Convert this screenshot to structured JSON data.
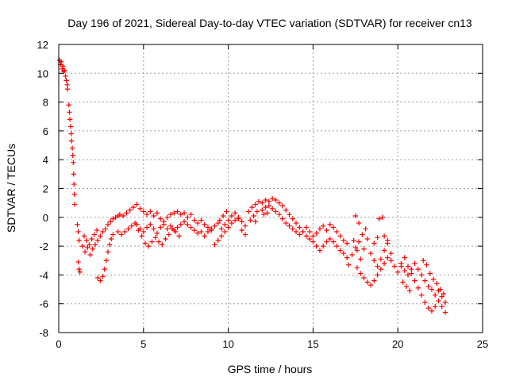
{
  "chart_data": {
    "type": "scatter",
    "title": "Day 196 of 2021, Sidereal Day-to-day VTEC variation (SDTVAR) for receiver cn13",
    "xlabel": "GPS time / hours",
    "ylabel": "SDTVAR / TECUs",
    "xlim": [
      0,
      25
    ],
    "ylim": [
      -8,
      12
    ],
    "xticks": [
      0,
      5,
      10,
      15,
      20,
      25
    ],
    "yticks": [
      -8,
      -6,
      -4,
      -2,
      0,
      2,
      4,
      6,
      8,
      10,
      12
    ],
    "grid": true,
    "marker": "plus",
    "color": "#ff0000",
    "series": [
      {
        "name": "SDTVAR",
        "points": [
          [
            0.05,
            10.9
          ],
          [
            0.1,
            10.6
          ],
          [
            0.15,
            10.8
          ],
          [
            0.2,
            10.3
          ],
          [
            0.25,
            10.5
          ],
          [
            0.3,
            10.1
          ],
          [
            0.35,
            10.2
          ],
          [
            0.4,
            9.8
          ],
          [
            0.45,
            9.5
          ],
          [
            0.5,
            9.2
          ],
          [
            0.52,
            8.9
          ],
          [
            0.6,
            7.8
          ],
          [
            0.63,
            7.3
          ],
          [
            0.66,
            6.8
          ],
          [
            0.7,
            6.3
          ],
          [
            0.73,
            5.8
          ],
          [
            0.76,
            5.3
          ],
          [
            0.8,
            4.8
          ],
          [
            0.83,
            4.3
          ],
          [
            0.86,
            3.8
          ],
          [
            0.88,
            3.0
          ],
          [
            0.9,
            2.3
          ],
          [
            0.92,
            1.6
          ],
          [
            0.94,
            0.9
          ],
          [
            1.1,
            -0.5
          ],
          [
            1.15,
            -1.0
          ],
          [
            1.2,
            -1.6
          ],
          [
            1.15,
            -3.1
          ],
          [
            1.2,
            -3.6
          ],
          [
            1.25,
            -3.8
          ],
          [
            1.4,
            -2.0
          ],
          [
            1.55,
            -2.4
          ],
          [
            1.7,
            -2.1
          ],
          [
            1.85,
            -2.6
          ],
          [
            2.0,
            -2.2
          ],
          [
            2.15,
            -1.9
          ],
          [
            2.3,
            -1.6
          ],
          [
            2.45,
            -1.3
          ],
          [
            2.6,
            -1.0
          ],
          [
            2.75,
            -0.8
          ],
          [
            2.9,
            -0.5
          ],
          [
            3.05,
            -0.3
          ],
          [
            3.2,
            -0.1
          ],
          [
            3.35,
            0.0
          ],
          [
            3.5,
            0.1
          ],
          [
            1.5,
            -1.3
          ],
          [
            1.65,
            -1.6
          ],
          [
            1.8,
            -1.9
          ],
          [
            1.95,
            -1.5
          ],
          [
            2.1,
            -1.2
          ],
          [
            2.25,
            -0.9
          ],
          [
            2.3,
            -4.2
          ],
          [
            2.45,
            -4.4
          ],
          [
            2.6,
            -4.1
          ],
          [
            2.7,
            -3.6
          ],
          [
            2.8,
            -3.0
          ],
          [
            2.9,
            -2.4
          ],
          [
            3.0,
            -1.9
          ],
          [
            3.1,
            -1.5
          ],
          [
            3.2,
            -1.2
          ],
          [
            3.6,
            0.2
          ],
          [
            3.8,
            0.1
          ],
          [
            4.0,
            0.3
          ],
          [
            4.2,
            0.5
          ],
          [
            4.4,
            0.7
          ],
          [
            4.6,
            0.9
          ],
          [
            4.8,
            0.6
          ],
          [
            5.0,
            0.4
          ],
          [
            5.2,
            0.2
          ],
          [
            5.4,
            0.4
          ],
          [
            5.6,
            0.1
          ],
          [
            5.8,
            0.3
          ],
          [
            6.0,
            -0.1
          ],
          [
            6.2,
            -0.3
          ],
          [
            6.4,
            0.0
          ],
          [
            6.6,
            0.2
          ],
          [
            6.8,
            0.3
          ],
          [
            7.0,
            0.4
          ],
          [
            7.2,
            0.2
          ],
          [
            7.4,
            0.3
          ],
          [
            7.6,
            0.0
          ],
          [
            7.8,
            0.2
          ],
          [
            8.0,
            -0.2
          ],
          [
            8.2,
            -0.4
          ],
          [
            8.4,
            -0.2
          ],
          [
            8.6,
            -0.5
          ],
          [
            8.8,
            -0.7
          ],
          [
            9.0,
            -0.9
          ],
          [
            3.5,
            -1.0
          ],
          [
            3.7,
            -1.2
          ],
          [
            3.9,
            -1.0
          ],
          [
            4.1,
            -0.8
          ],
          [
            4.3,
            -0.6
          ],
          [
            4.5,
            -0.4
          ],
          [
            4.7,
            -0.9
          ],
          [
            4.9,
            -1.3
          ],
          [
            5.1,
            -1.8
          ],
          [
            5.3,
            -2.0
          ],
          [
            5.5,
            -1.7
          ],
          [
            5.7,
            -1.4
          ],
          [
            5.9,
            -1.7
          ],
          [
            6.1,
            -1.9
          ],
          [
            6.3,
            -1.5
          ],
          [
            6.5,
            -1.2
          ],
          [
            6.7,
            -0.8
          ],
          [
            6.9,
            -1.0
          ],
          [
            7.1,
            -1.3
          ],
          [
            4.6,
            -0.5
          ],
          [
            4.8,
            -0.8
          ],
          [
            5.0,
            -1.0
          ],
          [
            5.2,
            -0.7
          ],
          [
            5.4,
            -0.5
          ],
          [
            5.6,
            -0.8
          ],
          [
            5.8,
            -1.1
          ],
          [
            6.0,
            -0.7
          ],
          [
            6.2,
            -0.5
          ],
          [
            6.4,
            -0.8
          ],
          [
            6.6,
            -0.6
          ],
          [
            6.8,
            -0.9
          ],
          [
            7.0,
            -0.7
          ],
          [
            7.2,
            -0.5
          ],
          [
            7.4,
            -0.3
          ],
          [
            7.6,
            -0.5
          ],
          [
            7.8,
            -0.7
          ],
          [
            8.0,
            -0.9
          ],
          [
            8.2,
            -1.1
          ],
          [
            8.4,
            -1.0
          ],
          [
            8.6,
            -1.3
          ],
          [
            8.8,
            -1.0
          ],
          [
            9.0,
            -0.8
          ],
          [
            9.2,
            -0.6
          ],
          [
            9.4,
            -0.4
          ],
          [
            9.2,
            -1.9
          ],
          [
            9.4,
            -1.6
          ],
          [
            9.6,
            -1.3
          ],
          [
            9.8,
            -1.0
          ],
          [
            10.0,
            -0.7
          ],
          [
            10.2,
            -0.4
          ],
          [
            10.4,
            -0.2
          ],
          [
            10.6,
            0.0
          ],
          [
            10.8,
            -0.3
          ],
          [
            11.0,
            -0.6
          ],
          [
            9.6,
            -0.8
          ],
          [
            9.8,
            -0.5
          ],
          [
            10.0,
            -0.2
          ],
          [
            10.2,
            0.1
          ],
          [
            10.4,
            0.3
          ],
          [
            10.6,
            -0.1
          ],
          [
            10.8,
            -0.9
          ],
          [
            11.0,
            -1.2
          ],
          [
            9.5,
            -0.2
          ],
          [
            9.7,
            0.1
          ],
          [
            9.9,
            0.4
          ],
          [
            11.2,
            0.4
          ],
          [
            11.4,
            0.7
          ],
          [
            11.6,
            0.9
          ],
          [
            11.8,
            1.1
          ],
          [
            12.0,
            1.0
          ],
          [
            12.2,
            1.2
          ],
          [
            12.4,
            1.1
          ],
          [
            12.6,
            1.3
          ],
          [
            12.8,
            1.2
          ],
          [
            13.0,
            1.0
          ],
          [
            13.2,
            0.8
          ],
          [
            13.4,
            0.5
          ],
          [
            13.6,
            0.2
          ],
          [
            13.8,
            -0.1
          ],
          [
            14.0,
            -0.4
          ],
          [
            14.2,
            -0.7
          ],
          [
            14.4,
            -1.0
          ],
          [
            14.6,
            -1.3
          ],
          [
            14.8,
            -1.5
          ],
          [
            15.0,
            -1.7
          ],
          [
            15.2,
            -2.0
          ],
          [
            15.4,
            -2.3
          ],
          [
            15.6,
            -2.0
          ],
          [
            15.8,
            -1.7
          ],
          [
            16.0,
            -1.5
          ],
          [
            16.2,
            -1.7
          ],
          [
            16.4,
            -2.0
          ],
          [
            16.6,
            -2.3
          ],
          [
            16.8,
            -2.5
          ],
          [
            17.0,
            -2.8
          ],
          [
            12.0,
            0.5
          ],
          [
            12.2,
            0.7
          ],
          [
            12.4,
            0.8
          ],
          [
            12.6,
            0.6
          ],
          [
            12.8,
            0.4
          ],
          [
            13.0,
            0.2
          ],
          [
            13.2,
            -0.1
          ],
          [
            13.4,
            -0.4
          ],
          [
            13.6,
            -0.6
          ],
          [
            13.8,
            -0.8
          ],
          [
            14.0,
            -1.0
          ],
          [
            14.2,
            -1.2
          ],
          [
            14.4,
            -1.0
          ],
          [
            14.6,
            -0.7
          ],
          [
            14.8,
            -1.0
          ],
          [
            15.0,
            -1.3
          ],
          [
            15.2,
            -1.1
          ],
          [
            15.4,
            -0.8
          ],
          [
            15.6,
            -0.6
          ],
          [
            15.8,
            -0.9
          ],
          [
            16.0,
            -0.5
          ],
          [
            16.2,
            -0.7
          ],
          [
            16.4,
            -1.0
          ],
          [
            16.6,
            -1.3
          ],
          [
            16.8,
            -1.6
          ],
          [
            17.0,
            -1.8
          ],
          [
            11.3,
            -0.2
          ],
          [
            11.5,
            0.1
          ],
          [
            11.7,
            0.4
          ],
          [
            12.1,
            0.2
          ],
          [
            12.3,
            0.3
          ],
          [
            11.6,
            -0.3
          ],
          [
            17.1,
            -3.3
          ],
          [
            17.3,
            -2.6
          ],
          [
            17.5,
            -2.1
          ],
          [
            17.7,
            -1.7
          ],
          [
            17.9,
            -1.2
          ],
          [
            18.1,
            -0.8
          ],
          [
            17.4,
            -1.6
          ],
          [
            17.6,
            -2.3
          ],
          [
            17.8,
            -2.9
          ],
          [
            18.0,
            -2.2
          ],
          [
            18.2,
            -1.5
          ],
          [
            17.5,
            0.1
          ],
          [
            17.7,
            -0.4
          ],
          [
            18.9,
            -0.1
          ],
          [
            19.1,
            0.0
          ],
          [
            17.6,
            -3.5
          ],
          [
            17.8,
            -3.9
          ],
          [
            18.0,
            -4.2
          ],
          [
            18.2,
            -4.5
          ],
          [
            18.4,
            -4.7
          ],
          [
            18.6,
            -4.4
          ],
          [
            18.8,
            -4.0
          ],
          [
            19.0,
            -3.6
          ],
          [
            19.2,
            -3.2
          ],
          [
            19.4,
            -2.8
          ],
          [
            19.6,
            -2.5
          ],
          [
            18.4,
            -2.5
          ],
          [
            18.6,
            -3.0
          ],
          [
            18.8,
            -3.4
          ],
          [
            19.0,
            -2.9
          ],
          [
            19.2,
            -2.3
          ],
          [
            19.4,
            -1.8
          ],
          [
            19.6,
            -3.0
          ],
          [
            19.8,
            -3.4
          ],
          [
            18.6,
            -1.8
          ],
          [
            18.8,
            -1.4
          ],
          [
            19.2,
            -1.3
          ],
          [
            19.4,
            -1.6
          ],
          [
            20.0,
            -3.8
          ],
          [
            20.2,
            -3.2
          ],
          [
            20.4,
            -2.8
          ],
          [
            20.6,
            -3.4
          ],
          [
            20.8,
            -3.9
          ],
          [
            21.0,
            -4.4
          ],
          [
            21.2,
            -4.9
          ],
          [
            21.4,
            -5.4
          ],
          [
            21.6,
            -5.9
          ],
          [
            21.8,
            -6.3
          ],
          [
            22.0,
            -6.5
          ],
          [
            22.2,
            -6.2
          ],
          [
            22.4,
            -5.8
          ],
          [
            22.6,
            -6.2
          ],
          [
            22.8,
            -6.6
          ],
          [
            20.2,
            -3.4
          ],
          [
            20.4,
            -3.7
          ],
          [
            20.6,
            -4.0
          ],
          [
            20.8,
            -3.6
          ],
          [
            21.0,
            -3.2
          ],
          [
            21.2,
            -3.6
          ],
          [
            21.4,
            -4.0
          ],
          [
            21.6,
            -4.4
          ],
          [
            21.8,
            -4.8
          ],
          [
            22.0,
            -5.0
          ],
          [
            22.2,
            -5.4
          ],
          [
            22.4,
            -5.1
          ],
          [
            22.6,
            -5.5
          ],
          [
            22.8,
            -5.9
          ],
          [
            20.3,
            -4.5
          ],
          [
            20.5,
            -4.8
          ],
          [
            20.7,
            -5.1
          ],
          [
            21.5,
            -3.0
          ],
          [
            21.7,
            -3.3
          ],
          [
            21.9,
            -3.9
          ],
          [
            22.1,
            -4.3
          ],
          [
            22.3,
            -4.6
          ],
          [
            22.5,
            -5.0
          ],
          [
            22.7,
            -5.3
          ]
        ]
      }
    ]
  }
}
